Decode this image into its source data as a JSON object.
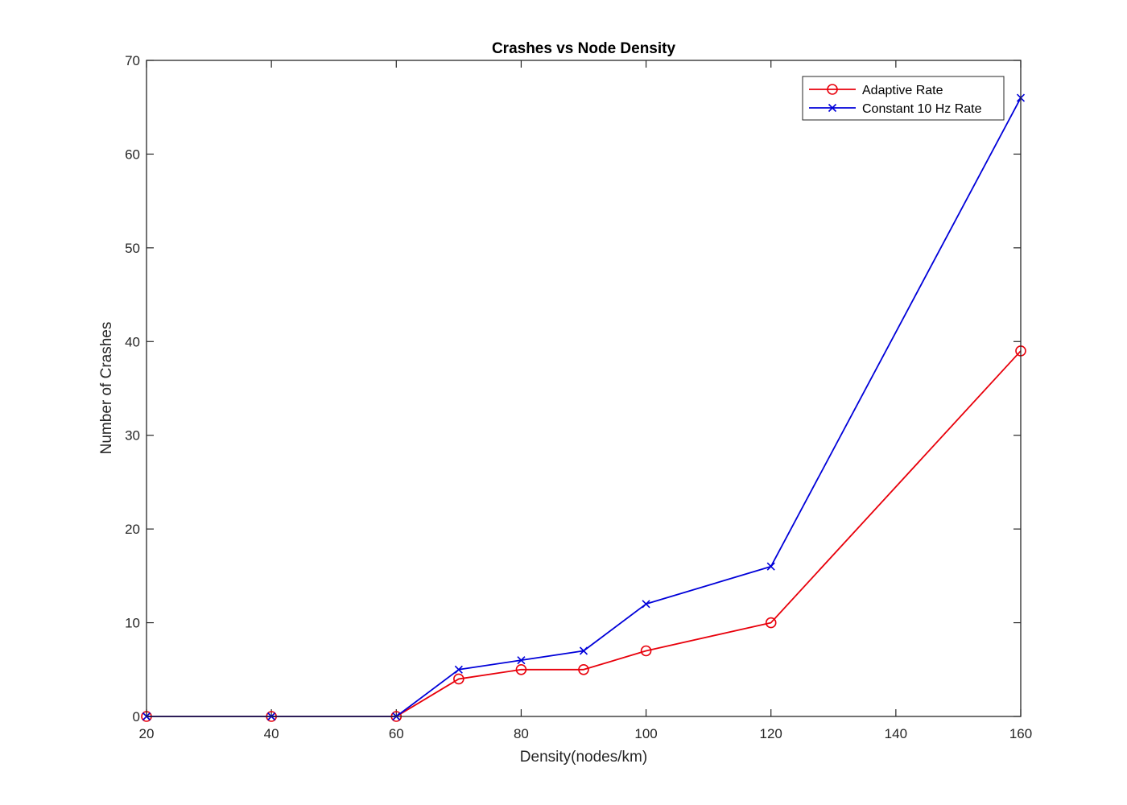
{
  "chart_data": {
    "type": "line",
    "title": "Crashes vs Node Density",
    "xlabel": "Density(nodes/km)",
    "ylabel": "Number of Crashes",
    "xlim": [
      20,
      160
    ],
    "ylim": [
      0,
      70
    ],
    "xticks": [
      20,
      40,
      60,
      80,
      100,
      120,
      140,
      160
    ],
    "yticks": [
      0,
      10,
      20,
      30,
      40,
      50,
      60,
      70
    ],
    "x": [
      20,
      40,
      60,
      70,
      80,
      90,
      100,
      120,
      160
    ],
    "series": [
      {
        "name": "Adaptive Rate",
        "color": "#e8000b",
        "marker": "circle",
        "values": [
          0,
          0,
          0,
          4,
          5,
          5,
          7,
          10,
          39
        ]
      },
      {
        "name": "Constant 10 Hz Rate",
        "color": "#0000d9",
        "marker": "x",
        "values": [
          0,
          0,
          0,
          5,
          6,
          7,
          12,
          16,
          66
        ]
      }
    ],
    "grid": false,
    "legend_position": "top-right"
  }
}
